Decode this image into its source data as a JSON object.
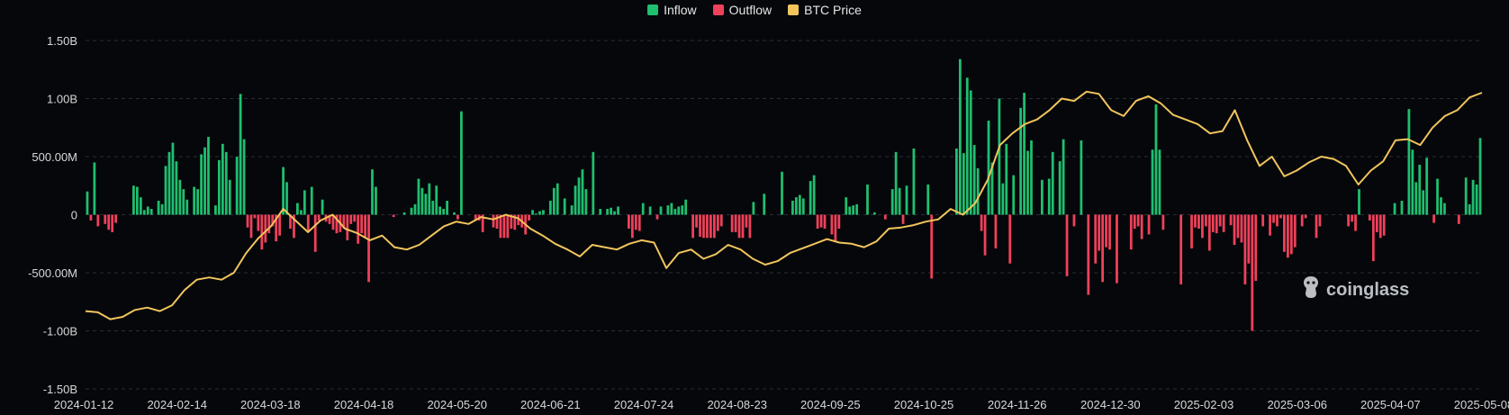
{
  "legend": [
    {
      "label": "Inflow",
      "color": "#1fbf6f"
    },
    {
      "label": "Outflow",
      "color": "#f0415a"
    },
    {
      "label": "BTC Price",
      "color": "#f2c55c"
    }
  ],
  "watermark": "coinglass",
  "chart_data": {
    "type": "bar",
    "y_ticks": [
      "1.50B",
      "1.00B",
      "500.00M",
      "0",
      "-500.00M",
      "-1.00B",
      "-1.50B"
    ],
    "ylim": [
      -1500000000,
      1500000000
    ],
    "x_tick_labels": [
      "2024-01-12",
      "2024-02-14",
      "2024-03-18",
      "2024-04-18",
      "2024-05-20",
      "2024-06-21",
      "2024-07-24",
      "2024-08-23",
      "2024-09-25",
      "2024-10-25",
      "2024-11-26",
      "2024-12-30",
      "2025-02-03",
      "2025-03-06",
      "2025-04-07",
      "2025-05-08"
    ],
    "grid": true,
    "legend_position": "top-center",
    "series": [
      {
        "name": "Inflow",
        "color": "#1fbf6f",
        "type": "bar"
      },
      {
        "name": "Outflow",
        "color": "#f0415a",
        "type": "bar"
      },
      {
        "name": "BTC Price",
        "color": "#f2c55c",
        "type": "line"
      }
    ],
    "flow_values_millions": [
      200,
      -50,
      450,
      -100,
      0,
      -80,
      -130,
      -150,
      -70,
      0,
      0,
      0,
      0,
      250,
      240,
      150,
      40,
      70,
      50,
      0,
      120,
      90,
      420,
      540,
      620,
      460,
      300,
      220,
      130,
      0,
      240,
      220,
      520,
      580,
      670,
      0,
      80,
      470,
      610,
      540,
      300,
      0,
      500,
      1040,
      650,
      -110,
      -200,
      -30,
      -140,
      -300,
      -240,
      -160,
      -100,
      -230,
      -180,
      410,
      280,
      -120,
      -200,
      100,
      40,
      210,
      -140,
      240,
      -320,
      -50,
      130,
      -60,
      -80,
      -130,
      -160,
      -150,
      -120,
      -220,
      -80,
      -60,
      -250,
      -160,
      -200,
      -580,
      390,
      240,
      0,
      0,
      0,
      0,
      -20,
      0,
      0,
      20,
      0,
      60,
      90,
      310,
      230,
      180,
      270,
      120,
      250,
      70,
      50,
      120,
      0,
      20,
      -40,
      890,
      0,
      0,
      0,
      -50,
      -50,
      -150,
      0,
      0,
      -110,
      -120,
      -200,
      -200,
      -200,
      -120,
      -130,
      -90,
      -110,
      -170,
      -50,
      40,
      10,
      30,
      40,
      0,
      120,
      230,
      270,
      0,
      140,
      0,
      80,
      250,
      320,
      390,
      220,
      0,
      540,
      0,
      50,
      0,
      50,
      60,
      30,
      70,
      0,
      0,
      -120,
      -200,
      -130,
      -140,
      100,
      0,
      70,
      0,
      -40,
      70,
      0,
      80,
      100,
      50,
      70,
      80,
      130,
      0,
      -200,
      -110,
      -190,
      -200,
      -200,
      -200,
      -200,
      -140,
      -100,
      0,
      0,
      -150,
      -150,
      -200,
      -200,
      -110,
      -200,
      110,
      0,
      0,
      180,
      0,
      0,
      0,
      0,
      370,
      0,
      0,
      120,
      150,
      170,
      140,
      0,
      290,
      340,
      -120,
      -110,
      -120,
      0,
      -170,
      -230,
      -120,
      0,
      150,
      70,
      80,
      90,
      0,
      0,
      260,
      0,
      20,
      0,
      0,
      -40,
      0,
      220,
      540,
      230,
      -80,
      250,
      0,
      570,
      0,
      0,
      0,
      260,
      -550,
      0,
      0,
      0,
      0,
      0,
      0,
      570,
      1340,
      530,
      1180,
      1070,
      600,
      400,
      -140,
      -350,
      810,
      450,
      -290,
      1000,
      270,
      610,
      -420,
      340,
      0,
      920,
      1050,
      550,
      640,
      0,
      0,
      300,
      0,
      310,
      540,
      0,
      460,
      650,
      -530,
      0,
      -100,
      0,
      640,
      0,
      -690,
      0,
      -420,
      -310,
      -580,
      -280,
      -300,
      0,
      -590,
      0,
      0,
      0,
      -300,
      -120,
      -100,
      -210,
      0,
      -170,
      560,
      950,
      560,
      -130,
      0,
      0,
      0,
      0,
      -600,
      0,
      0,
      -290,
      -110,
      -120,
      -200,
      -100,
      -310,
      -150,
      -160,
      -100,
      -150,
      0,
      -90,
      -260,
      -200,
      -240,
      -600,
      -420,
      -1000,
      -570,
      0,
      -100,
      0,
      -180,
      -70,
      -100,
      -30,
      -320,
      -370,
      -340,
      -280,
      0,
      -100,
      -30,
      0,
      0,
      -200,
      -100,
      0,
      0,
      0,
      0,
      0,
      0,
      0,
      -100,
      -60,
      -140,
      220,
      0,
      0,
      -50,
      -400,
      -150,
      -200,
      -180,
      0,
      0,
      100,
      0,
      120,
      0,
      910,
      560,
      280,
      430,
      210,
      490,
      0,
      -70,
      310,
      150,
      100,
      0,
      0,
      0,
      -80,
      0,
      320,
      90,
      300,
      260,
      660
    ],
    "btc_price_path_comment_free": [
      28000,
      29000,
      30000,
      31000,
      32000,
      33000,
      34000,
      35000,
      36000,
      37000,
      38000,
      39000,
      40000,
      41000,
      42000,
      43000,
      44000,
      45000,
      46000,
      47000,
      48000,
      49000,
      50000,
      51000,
      52000,
      53000,
      54000,
      55000,
      56000,
      57000,
      58000,
      59000,
      60000,
      61000,
      62000,
      63000,
      64000,
      65000,
      66000,
      67000,
      68000,
      69000,
      70000,
      71000,
      72000,
      73000,
      74000,
      75000,
      76000,
      77000,
      78000,
      79000,
      80000,
      81000,
      82000,
      83000,
      84000,
      85000,
      86000,
      87000,
      88000,
      89000,
      90000,
      91000,
      92000,
      93000,
      94000,
      95000,
      96000,
      97000,
      98000,
      99000,
      100000,
      101000,
      102000,
      103000,
      104000,
      105000,
      106000,
      107000,
      108000,
      109000,
      110000
    ]
  }
}
